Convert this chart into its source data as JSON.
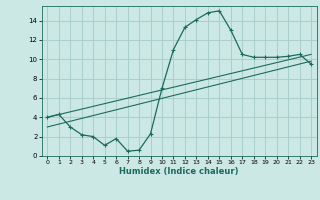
{
  "xlabel": "Humidex (Indice chaleur)",
  "ylabel": "",
  "bg_color": "#cce8e4",
  "grid_color": "#aacfca",
  "line_color": "#1a6b5e",
  "xlim": [
    -0.5,
    23.5
  ],
  "ylim": [
    0,
    15.5
  ],
  "xticks": [
    0,
    1,
    2,
    3,
    4,
    5,
    6,
    7,
    8,
    9,
    10,
    11,
    12,
    13,
    14,
    15,
    16,
    17,
    18,
    19,
    20,
    21,
    22,
    23
  ],
  "yticks": [
    0,
    2,
    4,
    6,
    8,
    10,
    12,
    14
  ],
  "curve1_x": [
    0,
    1,
    2,
    3,
    4,
    5,
    6,
    7,
    8,
    9,
    10,
    11,
    12,
    13,
    14,
    15,
    16,
    17,
    18,
    19,
    20,
    21,
    22,
    23
  ],
  "curve1_y": [
    4.0,
    4.3,
    3.0,
    2.2,
    2.0,
    1.1,
    1.8,
    0.5,
    0.6,
    2.3,
    7.0,
    11.0,
    13.3,
    14.1,
    14.8,
    15.0,
    13.0,
    10.5,
    10.2,
    10.2,
    10.2,
    10.3,
    10.5,
    9.5
  ],
  "line2_x": [
    0,
    23
  ],
  "line2_y": [
    4.0,
    10.5
  ],
  "line3_x": [
    0,
    23
  ],
  "line3_y": [
    3.0,
    9.8
  ]
}
